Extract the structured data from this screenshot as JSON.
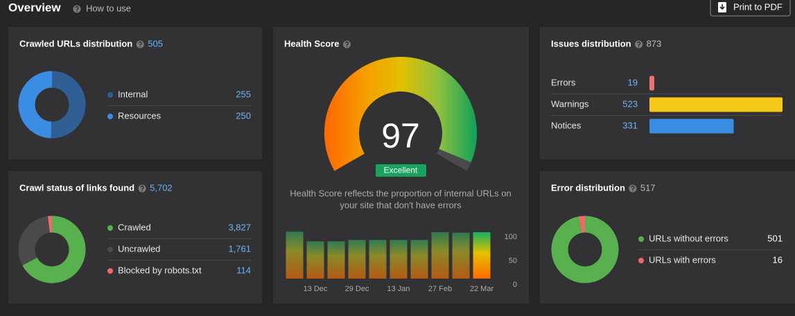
{
  "header": {
    "title": "Overview",
    "help": "How to use",
    "button": "Print to PDF"
  },
  "crawled": {
    "title": "Crawled URLs distribution",
    "total": 505,
    "items": [
      {
        "label": "Internal",
        "value": 255,
        "color": "#2f5f95"
      },
      {
        "label": "Resources",
        "value": 250,
        "color": "#3a8de3"
      }
    ]
  },
  "crawl_status": {
    "title": "Crawl status of links found",
    "total": 5702,
    "total_label": "5,702",
    "items": [
      {
        "label": "Crawled",
        "value": 3827,
        "value_label": "3,827",
        "color": "#58b04e"
      },
      {
        "label": "Uncrawled",
        "value": 1761,
        "value_label": "1,761",
        "color": "#4a4a4c"
      },
      {
        "label": "Blocked by robots.txt",
        "value": 114,
        "color": "#ef6b6b"
      }
    ]
  },
  "health": {
    "title": "Health Score",
    "score": 97,
    "max": 100,
    "badge": "Excellent",
    "description": [
      "Health Score reflects the proportion of internal URLs on",
      "your site that don't have errors"
    ],
    "history": {
      "categories": [
        null,
        "13 Dec",
        null,
        "29 Dec",
        null,
        "13 Jan",
        null,
        "27 Feb",
        null,
        "22 Mar"
      ],
      "values": [
        98,
        78,
        78,
        81,
        81,
        81,
        81,
        97,
        96,
        97
      ],
      "ylim": [
        0,
        100
      ],
      "yticks": [
        0,
        50,
        100
      ]
    }
  },
  "issues": {
    "title": "Issues distribution",
    "total": 873,
    "items": [
      {
        "label": "Errors",
        "value": 19,
        "color": "#f07070"
      },
      {
        "label": "Warnings",
        "value": 523,
        "color": "#f6c81a"
      },
      {
        "label": "Notices",
        "value": 331,
        "color": "#3a8de3"
      }
    ]
  },
  "errors": {
    "title": "Error distribution",
    "total": 517,
    "items": [
      {
        "label": "URLs without errors",
        "value": 501,
        "color": "#58b04e"
      },
      {
        "label": "URLs with errors",
        "value": 16,
        "color": "#ef6b6b"
      }
    ]
  }
}
